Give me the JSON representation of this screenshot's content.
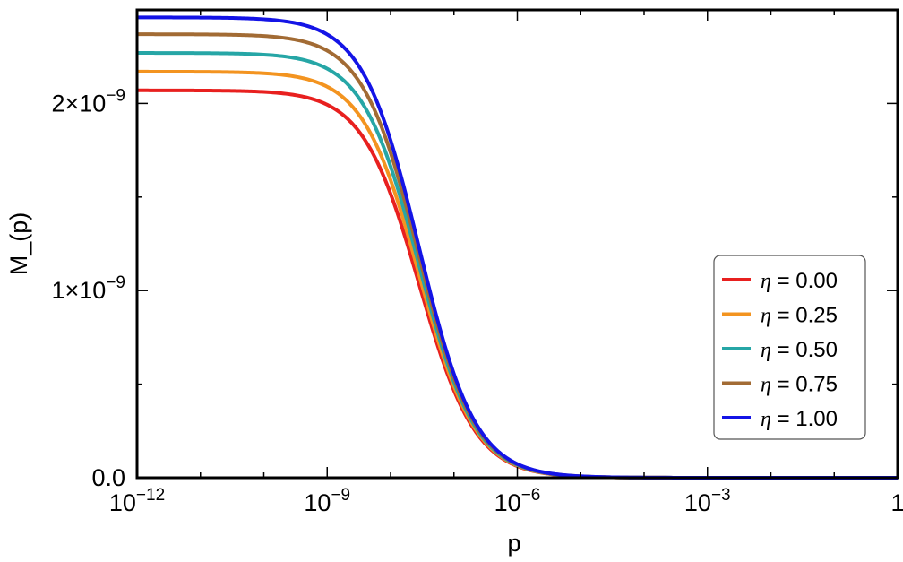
{
  "chart_data": {
    "type": "line",
    "x_scale": "log",
    "xlabel": "p",
    "ylabel": "M_(p)",
    "xlim": [
      1e-12,
      1
    ],
    "ylim": [
      0,
      2.5e-09
    ],
    "x_ticks": [
      {
        "value": 1e-12,
        "base": "10",
        "exp": "−12"
      },
      {
        "value": 1e-09,
        "base": "10",
        "exp": "−9"
      },
      {
        "value": 1e-06,
        "base": "10",
        "exp": "−6"
      },
      {
        "value": 0.001,
        "base": "10",
        "exp": "−3"
      },
      {
        "value": 1,
        "base": "1",
        "exp": ""
      }
    ],
    "y_ticks": [
      {
        "value": 0,
        "base": "0.0",
        "exp": ""
      },
      {
        "value": 1e-09,
        "base": "1×10",
        "exp": "−9"
      },
      {
        "value": 2e-09,
        "base": "2×10",
        "exp": "−9"
      }
    ],
    "legend_position": "bottom-right",
    "grid": false,
    "series": [
      {
        "name": "η = 0.00",
        "symbol": "η",
        "label": " = 0.00",
        "color": "#e8201f",
        "plateau": 2.07e-09,
        "x": [
          1e-12,
          1e-10,
          1e-09,
          3e-09,
          1e-08,
          3e-08,
          1e-07,
          3e-07,
          1e-06,
          1e-05,
          0.0001,
          0.001,
          0.01,
          0.1
        ],
        "y": [
          2.07e-09,
          2.07e-09,
          2.04e-09,
          1.86e-09,
          1.53e-09,
          1.19e-09,
          8.3e-10,
          5.4e-10,
          3.1e-10,
          8e-11,
          1.6e-11,
          3e-12,
          5e-13,
          1e-13
        ]
      },
      {
        "name": "η = 0.25",
        "symbol": "η",
        "label": " = 0.25",
        "color": "#f39420",
        "plateau": 2.17e-09,
        "x": [
          1e-12,
          1e-10,
          1e-09,
          3e-09,
          1e-08,
          3e-08,
          1e-07,
          3e-07,
          1e-06,
          1e-05,
          0.0001,
          0.001,
          0.01,
          0.1
        ],
        "y": [
          2.17e-09,
          2.17e-09,
          2.14e-09,
          1.97e-09,
          1.64e-09,
          1.28e-09,
          8.9e-10,
          5.8e-10,
          3.3e-10,
          8.5e-11,
          1.7e-11,
          3e-12,
          5e-13,
          1e-13
        ]
      },
      {
        "name": "η = 0.50",
        "symbol": "η",
        "label": " = 0.50",
        "color": "#26a6a6",
        "plateau": 2.27e-09,
        "x": [
          1e-12,
          1e-10,
          1e-09,
          3e-09,
          1e-08,
          3e-08,
          1e-07,
          3e-07,
          1e-06,
          1e-05,
          0.0001,
          0.001,
          0.01,
          0.1
        ],
        "y": [
          2.27e-09,
          2.27e-09,
          2.24e-09,
          2.07e-09,
          1.74e-09,
          1.37e-09,
          9.5e-10,
          6.2e-10,
          3.5e-10,
          9e-11,
          1.8e-11,
          3e-12,
          5e-13,
          1e-13
        ]
      },
      {
        "name": "η = 0.75",
        "symbol": "η",
        "label": " = 0.75",
        "color": "#a26b34",
        "plateau": 2.37e-09,
        "x": [
          1e-12,
          1e-10,
          1e-09,
          3e-09,
          1e-08,
          3e-08,
          1e-07,
          3e-07,
          1e-06,
          1e-05,
          0.0001,
          0.001,
          0.01,
          0.1
        ],
        "y": [
          2.37e-09,
          2.37e-09,
          2.34e-09,
          2.17e-09,
          1.84e-09,
          1.46e-09,
          1.02e-09,
          6.6e-10,
          3.8e-10,
          9.5e-11,
          1.9e-11,
          4e-12,
          6e-13,
          1e-13
        ]
      },
      {
        "name": "η = 1.00",
        "symbol": "η",
        "label": " = 1.00",
        "color": "#1414e6",
        "plateau": 2.46e-09,
        "x": [
          1e-12,
          1e-10,
          1e-09,
          3e-09,
          1e-08,
          3e-08,
          1e-07,
          3e-07,
          1e-06,
          1e-05,
          0.0001,
          0.001,
          0.01,
          0.1
        ],
        "y": [
          2.46e-09,
          2.46e-09,
          2.43e-09,
          2.26e-09,
          1.94e-09,
          1.55e-09,
          1.08e-09,
          7e-10,
          4e-10,
          1e-10,
          2e-11,
          4e-12,
          6e-13,
          1e-13
        ]
      }
    ]
  }
}
